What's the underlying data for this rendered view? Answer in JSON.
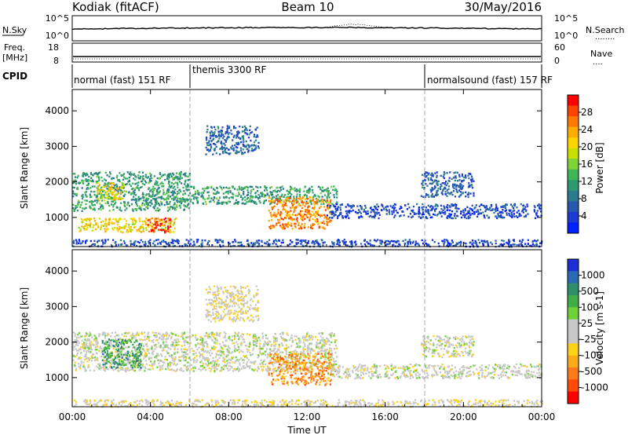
{
  "header": {
    "station": "Kodiak (fitACF)",
    "beam": "Beam 10",
    "date": "30/May/2016"
  },
  "panels": {
    "nsky": {
      "left_label": "N.Sky",
      "left_ticks": [
        "10^5",
        "10^0"
      ],
      "right_ticks": [
        "10^5",
        "10^0"
      ],
      "right_label": "N.Search",
      "right_dots": "........"
    },
    "freq": {
      "left_label_1": "Freq.",
      "left_label_2": "[MHz]",
      "left_ticks": [
        "18",
        "8"
      ],
      "right_ticks": [
        "60",
        "0"
      ],
      "right_label": "Nave",
      "right_dots": "...."
    },
    "cpid": {
      "label": "CPID",
      "segments": [
        {
          "label": "normal (fast) 151 RF",
          "start_hour": 0,
          "end_hour": 6
        },
        {
          "label": "themis 3300 RF",
          "start_hour": 6,
          "end_hour": 18
        },
        {
          "label": "normalsound (fast) 157 RF",
          "start_hour": 18,
          "end_hour": 24
        }
      ]
    },
    "power_ylabel": "Slant Range [km]",
    "velocity_ylabel": "Slant Range [km]"
  },
  "colorbars": {
    "power": {
      "title": "Power [dB]",
      "ticks": [
        "28",
        "24",
        "20",
        "16",
        "12",
        "8",
        "4"
      ],
      "colors": [
        "#ff0000",
        "#ff4400",
        "#ff7a00",
        "#ffae00",
        "#ffd500",
        "#c8e000",
        "#7ed23a",
        "#3fb55a",
        "#2e9870",
        "#2a7a90",
        "#2857b0",
        "#1e3ad0",
        "#0020ff"
      ]
    },
    "velocity": {
      "title": "Velocity [m s-1]",
      "ticks": [
        "1000",
        "500",
        "100",
        "25",
        "-25",
        "-100",
        "-500",
        "-1000"
      ],
      "colors": [
        "#1a2fd6",
        "#2a6ab0",
        "#2f8f6a",
        "#3fae48",
        "#6fd13a",
        "#c8c8c8",
        "#c8c8c8",
        "#ffd21a",
        "#ffab1a",
        "#ff7a1a",
        "#ff4a0a",
        "#ff0000"
      ]
    }
  },
  "chart_data": [
    {
      "type": "heatmap",
      "title": "Power",
      "xlabel": "Time UT",
      "ylabel": "Slant Range [km]",
      "xlim": [
        "00:00",
        "24:00"
      ],
      "ylim": [
        180,
        4600
      ],
      "x_ticks": [
        "00:00",
        "04:00",
        "08:00",
        "12:00",
        "16:00",
        "20:00",
        "00:00"
      ],
      "y_ticks": [
        1000,
        2000,
        3000,
        4000
      ],
      "colorbar": "Power [dB]",
      "colorbar_ticks": [
        4,
        8,
        12,
        16,
        20,
        24,
        28
      ],
      "regions": [
        {
          "t": [
            0.0,
            6.0
          ],
          "range": [
            1200,
            2300
          ],
          "value_db": 12
        },
        {
          "t": [
            1.2,
            2.6
          ],
          "range": [
            1500,
            2000
          ],
          "value_db": 20
        },
        {
          "t": [
            0.3,
            5.3
          ],
          "range": [
            600,
            1000
          ],
          "value_db": 20
        },
        {
          "t": [
            3.8,
            5.0
          ],
          "range": [
            600,
            1000
          ],
          "value_db": 28
        },
        {
          "t": [
            6.0,
            13.5
          ],
          "range": [
            1400,
            1900
          ],
          "value_db": 12
        },
        {
          "t": [
            10.0,
            13.2
          ],
          "range": [
            700,
            1600
          ],
          "value_db": 24
        },
        {
          "t": [
            6.8,
            9.5
          ],
          "range": [
            2800,
            3600
          ],
          "value_db": 8
        },
        {
          "t": [
            17.8,
            20.5
          ],
          "range": [
            1600,
            2300
          ],
          "value_db": 8
        },
        {
          "t": [
            13.0,
            24.0
          ],
          "range": [
            1000,
            1400
          ],
          "value_db": 6
        },
        {
          "t": [
            0.0,
            24.0
          ],
          "range": [
            200,
            400
          ],
          "value_db": 6
        }
      ]
    },
    {
      "type": "heatmap",
      "title": "Velocity",
      "xlabel": "Time UT",
      "ylabel": "Slant Range [km]",
      "xlim": [
        "00:00",
        "24:00"
      ],
      "ylim": [
        180,
        4600
      ],
      "x_ticks": [
        "00:00",
        "04:00",
        "08:00",
        "12:00",
        "16:00",
        "20:00",
        "00:00"
      ],
      "y_ticks": [
        1000,
        2000,
        3000,
        4000
      ],
      "colorbar": "Velocity [m s-1]",
      "colorbar_ticks": [
        1000,
        500,
        100,
        25,
        -25,
        -100,
        -500,
        -1000
      ],
      "regions": [
        {
          "t": [
            0.0,
            13.5
          ],
          "range": [
            1200,
            2300
          ],
          "value_ms": 0
        },
        {
          "t": [
            1.5,
            3.5
          ],
          "range": [
            1300,
            2100
          ],
          "value_ms": 300
        },
        {
          "t": [
            10.0,
            13.2
          ],
          "range": [
            800,
            1700
          ],
          "value_ms": -300
        },
        {
          "t": [
            6.8,
            9.5
          ],
          "range": [
            2600,
            3600
          ],
          "value_ms": -50
        },
        {
          "t": [
            17.8,
            20.5
          ],
          "range": [
            1600,
            2200
          ],
          "value_ms": 0
        },
        {
          "t": [
            13.0,
            24.0
          ],
          "range": [
            1000,
            1400
          ],
          "value_ms": 0
        },
        {
          "t": [
            0.0,
            24.0
          ],
          "range": [
            200,
            400
          ],
          "value_ms": -50
        }
      ]
    }
  ]
}
